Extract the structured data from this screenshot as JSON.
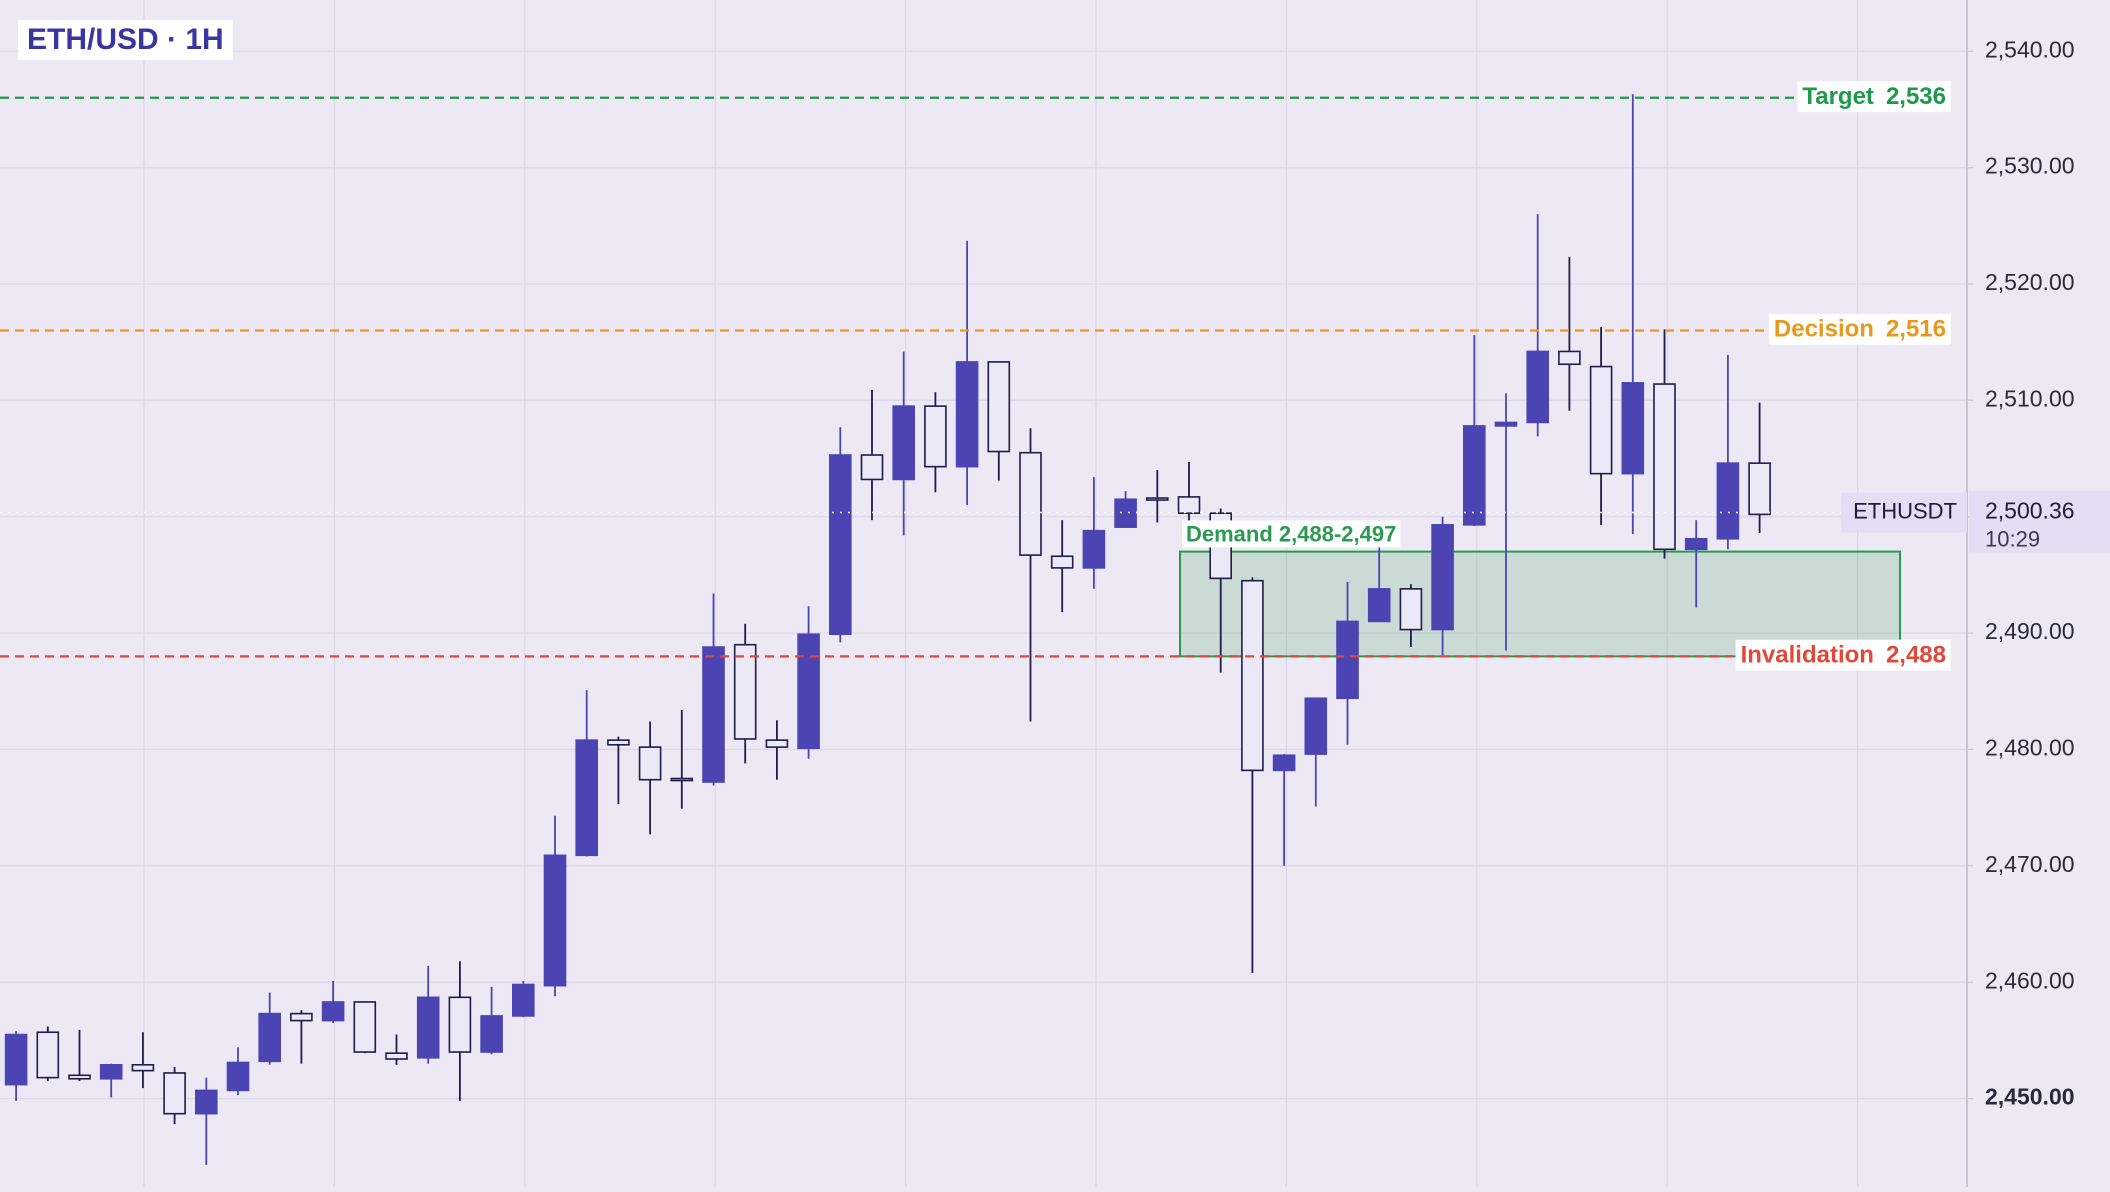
{
  "chart_data": {
    "type": "candlestick",
    "title": "ETH/USD · 1H",
    "symbol": "ETHUSDT",
    "last_price": 2500.36,
    "last_price_label": "2,500.36",
    "countdown": "10:29",
    "up_color": "#4b44b2",
    "down_color": "#ece9f7",
    "down_border": "#1f1c4a",
    "grid": true,
    "ylim": [
      2442.4,
      2544.4
    ],
    "yticks": [
      {
        "value": 2450,
        "label": "2,450.00"
      },
      {
        "value": 2460,
        "label": "2,460.00"
      },
      {
        "value": 2470,
        "label": "2,470.00"
      },
      {
        "value": 2480,
        "label": "2,480.00"
      },
      {
        "value": 2490,
        "label": "2,490.00"
      },
      {
        "value": 2500,
        "label": "2,500.00"
      },
      {
        "value": 2510,
        "label": "2,510.00"
      },
      {
        "value": 2520,
        "label": "2,520.00"
      },
      {
        "value": 2530,
        "label": "2,530.00"
      },
      {
        "value": 2540,
        "label": "2,540.00"
      }
    ],
    "open": [
      2451.2,
      2455.7,
      2452.0,
      2451.7,
      2452.9,
      2452.2,
      2448.7,
      2450.7,
      2453.2,
      2457.3,
      2456.7,
      2458.3,
      2453.9,
      2453.5,
      2458.7,
      2454.0,
      2457.1,
      2459.7,
      2470.9,
      2480.8,
      2480.2,
      2477.5,
      2477.2,
      2489.0,
      2480.8,
      2480.1,
      2489.9,
      2505.3,
      2503.2,
      2509.5,
      2504.3,
      2513.3,
      2505.5,
      2496.6,
      2495.6,
      2499.1,
      2501.6,
      2501.7,
      2500.3,
      2494.5,
      2478.2,
      2479.6,
      2484.4,
      2491.0,
      2493.8,
      2490.3,
      2499.3,
      2507.8,
      2508.1,
      2514.2,
      2512.9,
      2503.7,
      2511.4,
      2497.2,
      2498.1,
      2504.6
    ],
    "high": [
      2455.8,
      2456.2,
      2455.9,
      2453.0,
      2455.7,
      2452.7,
      2451.8,
      2454.4,
      2459.1,
      2457.6,
      2460.1,
      2458.3,
      2455.5,
      2461.4,
      2461.8,
      2459.6,
      2460.1,
      2474.3,
      2485.1,
      2481.1,
      2482.4,
      2483.4,
      2493.4,
      2490.8,
      2482.5,
      2492.3,
      2507.7,
      2510.9,
      2514.2,
      2510.7,
      2523.7,
      2513.3,
      2507.6,
      2499.7,
      2503.4,
      2502.2,
      2504.0,
      2504.7,
      2500.7,
      2494.8,
      2479.6,
      2484.4,
      2494.4,
      2499.7,
      2494.2,
      2500.0,
      2515.6,
      2510.6,
      2526.0,
      2522.3,
      2516.3,
      2536.3,
      2516.1,
      2499.7,
      2513.9,
      2509.8
    ],
    "low": [
      2449.8,
      2451.5,
      2451.5,
      2450.1,
      2450.9,
      2447.8,
      2444.3,
      2450.3,
      2452.9,
      2453.0,
      2456.5,
      2453.9,
      2452.9,
      2453.0,
      2449.8,
      2453.8,
      2457.0,
      2458.8,
      2470.8,
      2475.3,
      2472.7,
      2474.9,
      2476.9,
      2478.8,
      2477.4,
      2479.2,
      2489.2,
      2499.7,
      2498.4,
      2502.1,
      2501.0,
      2503.1,
      2482.4,
      2491.8,
      2493.8,
      2499.1,
      2499.5,
      2498.9,
      2486.6,
      2460.8,
      2470.0,
      2475.1,
      2480.4,
      2491.0,
      2488.8,
      2488.1,
      2499.2,
      2488.5,
      2506.9,
      2509.1,
      2499.3,
      2498.5,
      2496.4,
      2492.2,
      2497.2,
      2498.6
    ],
    "close": [
      2455.5,
      2451.8,
      2451.7,
      2452.9,
      2452.4,
      2448.7,
      2450.7,
      2453.1,
      2457.3,
      2456.7,
      2458.3,
      2454.0,
      2453.4,
      2458.7,
      2454.0,
      2457.1,
      2459.8,
      2470.9,
      2480.8,
      2480.4,
      2477.4,
      2477.4,
      2488.8,
      2480.9,
      2480.2,
      2489.9,
      2505.3,
      2503.2,
      2509.5,
      2504.3,
      2513.3,
      2505.6,
      2496.7,
      2495.6,
      2498.8,
      2501.5,
      2501.5,
      2500.3,
      2494.7,
      2478.2,
      2479.5,
      2484.4,
      2491.0,
      2493.8,
      2490.3,
      2499.3,
      2507.8,
      2508.1,
      2514.2,
      2513.1,
      2503.7,
      2511.5,
      2497.2,
      2498.1,
      2504.6,
      2500.2
    ],
    "levels": [
      {
        "name": "Target",
        "value": 2536,
        "value_label": "2,536",
        "color": "#1e9a4a"
      },
      {
        "name": "Decision",
        "value": 2516,
        "value_label": "2,516",
        "color": "#e8981c"
      },
      {
        "name": "Invalidation",
        "value": 2488,
        "value_label": "2,488",
        "color": "#e0483a"
      }
    ],
    "zone": {
      "label": "Demand 2,488-2,497",
      "low": 2488,
      "high": 2497,
      "color": "#2a9a50"
    }
  }
}
